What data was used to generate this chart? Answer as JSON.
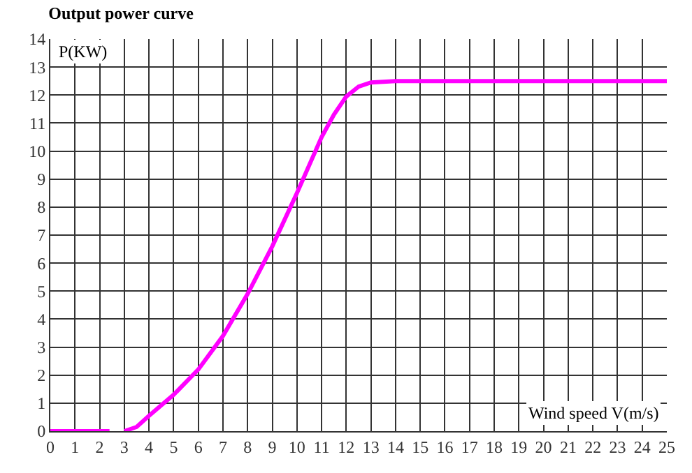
{
  "chart_data": {
    "type": "line",
    "title": "Output power curve",
    "xlabel": "Wind speed V(m/s)",
    "ylabel": "P(KW)",
    "x": [
      0,
      2.4,
      2.7,
      3,
      3.5,
      4,
      5,
      6,
      7,
      8,
      9,
      10,
      10.5,
      11,
      11.5,
      12,
      12.5,
      13,
      14,
      25
    ],
    "series": [
      {
        "color": "#ff00ff",
        "values": [
          0,
          0,
          null,
          0,
          0.15,
          0.55,
          1.3,
          2.2,
          3.4,
          4.9,
          6.6,
          8.5,
          9.5,
          10.5,
          11.3,
          11.95,
          12.3,
          12.45,
          12.5,
          12.5
        ]
      }
    ],
    "xlim": [
      0,
      25
    ],
    "xticks": [
      0,
      1,
      2,
      3,
      4,
      5,
      6,
      7,
      8,
      9,
      10,
      11,
      12,
      13,
      14,
      15,
      16,
      17,
      18,
      19,
      20,
      21,
      22,
      23,
      24,
      25
    ],
    "ylim": [
      0,
      14
    ],
    "yticks": [
      0,
      1,
      2,
      3,
      4,
      5,
      6,
      7,
      8,
      9,
      10,
      11,
      12,
      13,
      14
    ],
    "grid": true,
    "legend": false,
    "marker": "none",
    "line_style": "solid"
  }
}
